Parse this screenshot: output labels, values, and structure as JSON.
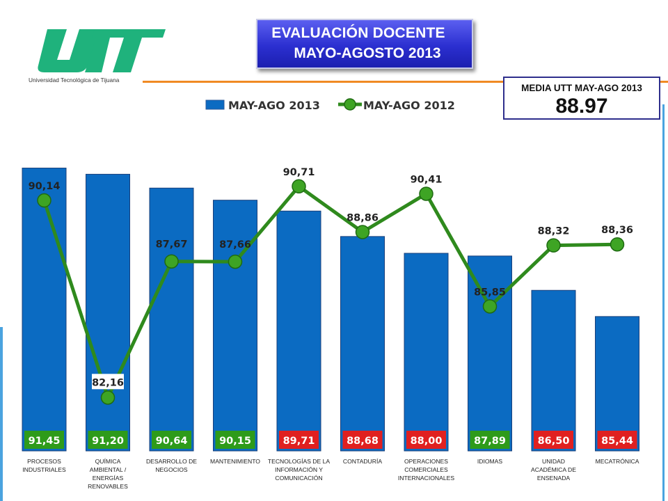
{
  "logo": {
    "wordmark": "UTT",
    "subtitle": "Universidad Tecnológica de Tijuana",
    "color": "#1fb27c"
  },
  "title": {
    "line1": "EVALUACIÓN DOCENTE",
    "line2": "MAYO-AGOSTO 2013"
  },
  "mean": {
    "label": "MEDIA UTT MAY-AGO 2013",
    "value": "88.97"
  },
  "colors": {
    "bar": "#0b6bc2",
    "line": "#2f8a1d",
    "marker": "#3ea424",
    "badge_green": "#2e9b1a",
    "badge_red": "#e02020"
  },
  "chart_data": {
    "type": "bar",
    "categories": [
      "PROCESOS INDUSTRIALES",
      "QUÍMICA AMBIENTAL / ENERGÍAS RENOVABLES",
      "DESARROLLO DE NEGOCIOS",
      "MANTENIMIENTO",
      "TECNOLOGÍAS DE LA INFORMACIÓN Y COMUNICACIÓN",
      "CONTADURÍA",
      "OPERACIONES COMERCIALES INTERNACIONALES",
      "IDIOMAS",
      "UNIDAD ACADÉMICA DE ENSENADA",
      "MECATRÓNICA"
    ],
    "category_lines": [
      [
        "PROCESOS",
        "INDUSTRIALES"
      ],
      [
        "QUÍMICA",
        "AMBIENTAL /",
        "ENERGÍAS",
        "RENOVABLES"
      ],
      [
        "DESARROLLO DE",
        "NEGOCIOS"
      ],
      [
        "MANTENIMIENTO"
      ],
      [
        "TECNOLOGÍAS DE LA",
        "INFORMACIÓN Y",
        "COMUNICACIÓN"
      ],
      [
        "CONTADURÍA"
      ],
      [
        "OPERACIONES",
        "COMERCIALES",
        "INTERNACIONALES"
      ],
      [
        "IDIOMAS"
      ],
      [
        "UNIDAD",
        "ACADÉMICA DE",
        "ENSENADA"
      ],
      [
        "MECATRÓNICA"
      ]
    ],
    "series": [
      {
        "name": "MAY-AGO 2013",
        "type": "bar",
        "values": [
          91.45,
          91.2,
          90.64,
          90.15,
          89.71,
          88.68,
          88.0,
          87.89,
          86.5,
          85.44
        ],
        "labels": [
          "91,45",
          "91,20",
          "90,64",
          "90,15",
          "89,71",
          "88,68",
          "88,00",
          "87,89",
          "86,50",
          "85,44"
        ],
        "label_colors": [
          "green",
          "green",
          "green",
          "green",
          "red",
          "red",
          "red",
          "green",
          "red",
          "red"
        ]
      },
      {
        "name": "MAY-AGO 2012",
        "type": "line",
        "values": [
          90.14,
          82.16,
          87.67,
          87.66,
          90.71,
          88.86,
          90.41,
          85.85,
          88.32,
          88.36
        ],
        "labels": [
          "90,14",
          "82,16",
          "87,67",
          "87,66",
          "90,71",
          "88,86",
          "90,41",
          "85,85",
          "88,32",
          "88,36"
        ]
      }
    ],
    "legend": "top",
    "grid": false,
    "xlabel": "",
    "ylabel": ""
  }
}
